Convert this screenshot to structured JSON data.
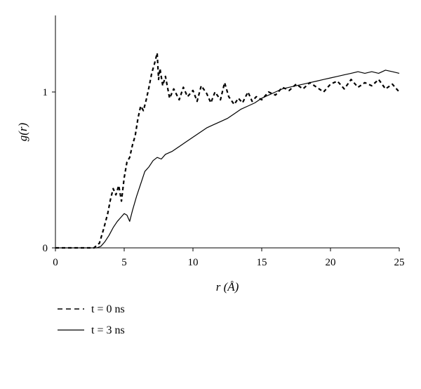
{
  "chart_data": {
    "type": "line",
    "title": "",
    "xlabel": "r (Å)",
    "ylabel": "g(r)",
    "xlim": [
      0,
      25
    ],
    "ylim": [
      0,
      1.5
    ],
    "xticks": [
      0,
      5,
      10,
      15,
      20,
      25
    ],
    "yticks": [
      0,
      1
    ],
    "grid": false,
    "legend_position": "bottom-left",
    "series": [
      {
        "name": "t = 0 ns",
        "style": "dashed",
        "x": [
          0,
          1,
          2,
          2.8,
          3.2,
          3.5,
          3.8,
          4.0,
          4.2,
          4.4,
          4.6,
          4.8,
          5.0,
          5.2,
          5.4,
          5.6,
          5.8,
          6.0,
          6.2,
          6.4,
          6.6,
          6.8,
          7.0,
          7.2,
          7.4,
          7.5,
          7.6,
          7.8,
          8.0,
          8.3,
          8.6,
          9.0,
          9.3,
          9.6,
          10.0,
          10.3,
          10.6,
          11.0,
          11.3,
          11.6,
          12.0,
          12.3,
          12.6,
          13.0,
          13.3,
          13.6,
          14.0,
          14.3,
          14.6,
          15.0,
          15.5,
          16.0,
          16.5,
          17.0,
          17.5,
          18.0,
          18.5,
          19.0,
          19.5,
          20.0,
          20.5,
          21.0,
          21.5,
          22.0,
          22.5,
          23.0,
          23.5,
          24.0,
          24.5,
          25.0
        ],
        "values": [
          0,
          0,
          0,
          0,
          0.03,
          0.12,
          0.22,
          0.31,
          0.38,
          0.34,
          0.4,
          0.3,
          0.45,
          0.55,
          0.58,
          0.66,
          0.72,
          0.83,
          0.91,
          0.88,
          0.95,
          1.03,
          1.12,
          1.18,
          1.25,
          1.08,
          1.15,
          1.04,
          1.1,
          0.96,
          1.02,
          0.95,
          1.03,
          0.97,
          1.01,
          0.94,
          1.04,
          0.99,
          0.93,
          1.0,
          0.95,
          1.06,
          0.97,
          0.92,
          0.96,
          0.93,
          1.0,
          0.94,
          0.97,
          0.95,
          1.0,
          0.98,
          1.03,
          1.01,
          1.05,
          1.02,
          1.06,
          1.03,
          1.0,
          1.05,
          1.07,
          1.02,
          1.08,
          1.03,
          1.06,
          1.04,
          1.08,
          1.02,
          1.05,
          1.0
        ]
      },
      {
        "name": "t = 3 ns",
        "style": "solid",
        "x": [
          0,
          1,
          2,
          3,
          3.3,
          3.6,
          3.9,
          4.2,
          4.5,
          4.8,
          5.0,
          5.2,
          5.4,
          5.6,
          5.9,
          6.2,
          6.5,
          6.8,
          7.1,
          7.4,
          7.7,
          8.0,
          8.5,
          9.0,
          9.5,
          10.0,
          10.5,
          11.0,
          11.5,
          12.0,
          12.5,
          13.0,
          13.5,
          14.0,
          14.5,
          15.0,
          15.5,
          16.0,
          16.5,
          17.0,
          17.5,
          18.0,
          18.5,
          19.0,
          19.5,
          20.0,
          20.5,
          21.0,
          21.5,
          22.0,
          22.5,
          23.0,
          23.5,
          24.0,
          24.5,
          25.0
        ],
        "values": [
          0,
          0,
          0,
          0,
          0.01,
          0.04,
          0.08,
          0.13,
          0.17,
          0.2,
          0.22,
          0.21,
          0.17,
          0.24,
          0.33,
          0.41,
          0.49,
          0.52,
          0.56,
          0.58,
          0.57,
          0.6,
          0.62,
          0.65,
          0.68,
          0.71,
          0.74,
          0.77,
          0.79,
          0.81,
          0.83,
          0.86,
          0.89,
          0.91,
          0.93,
          0.96,
          0.98,
          1.0,
          1.02,
          1.03,
          1.04,
          1.05,
          1.06,
          1.07,
          1.08,
          1.09,
          1.1,
          1.11,
          1.12,
          1.13,
          1.12,
          1.13,
          1.12,
          1.14,
          1.13,
          1.12
        ]
      }
    ]
  },
  "legend": {
    "items": [
      {
        "label": "t = 0 ns",
        "style": "dashed"
      },
      {
        "label": "t = 3 ns",
        "style": "solid"
      }
    ]
  }
}
